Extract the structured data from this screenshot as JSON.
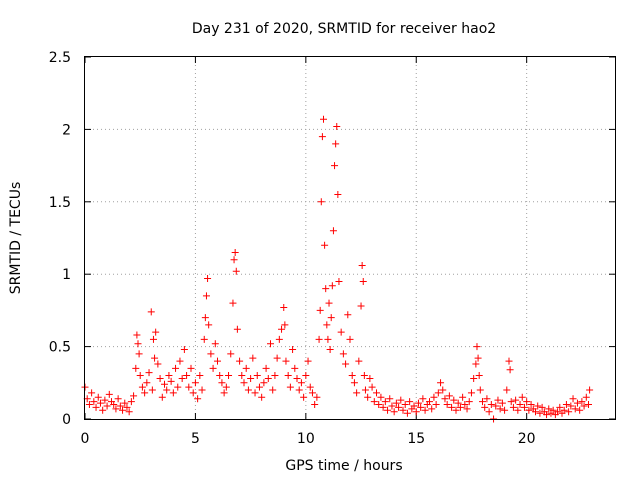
{
  "chart_data": {
    "type": "scatter",
    "title": "Day 231 of 2020, SRMTID for receiver hao2",
    "xlabel": "GPS time / hours",
    "ylabel": "SRMTID / TECUs",
    "xlim": [
      0,
      24
    ],
    "ylim": [
      0,
      2.5
    ],
    "xticks": [
      0,
      5,
      10,
      15,
      20
    ],
    "xtick_labels": [
      "0",
      "5",
      "10",
      "15",
      "20"
    ],
    "yticks": [
      0,
      0.5,
      1,
      1.5,
      2,
      2.5
    ],
    "ytick_labels": [
      "0",
      "0.5",
      "1",
      "1.5",
      "2",
      "2.5"
    ],
    "grid": true,
    "marker": "+",
    "series": [
      {
        "name": "hao2",
        "color": "#ff0000",
        "points": [
          [
            0.0,
            0.22
          ],
          [
            0.1,
            0.14
          ],
          [
            0.2,
            0.1
          ],
          [
            0.3,
            0.18
          ],
          [
            0.4,
            0.12
          ],
          [
            0.5,
            0.08
          ],
          [
            0.6,
            0.15
          ],
          [
            0.7,
            0.11
          ],
          [
            0.8,
            0.06
          ],
          [
            0.9,
            0.13
          ],
          [
            1.0,
            0.09
          ],
          [
            1.1,
            0.17
          ],
          [
            1.2,
            0.12
          ],
          [
            1.3,
            0.1
          ],
          [
            1.4,
            0.07
          ],
          [
            1.5,
            0.14
          ],
          [
            1.6,
            0.09
          ],
          [
            1.7,
            0.06
          ],
          [
            1.8,
            0.11
          ],
          [
            1.9,
            0.08
          ],
          [
            2.0,
            0.05
          ],
          [
            2.1,
            0.12
          ],
          [
            2.2,
            0.16
          ],
          [
            2.3,
            0.35
          ],
          [
            2.35,
            0.58
          ],
          [
            2.4,
            0.52
          ],
          [
            2.45,
            0.45
          ],
          [
            2.5,
            0.3
          ],
          [
            2.6,
            0.22
          ],
          [
            2.7,
            0.18
          ],
          [
            2.8,
            0.25
          ],
          [
            2.9,
            0.32
          ],
          [
            3.0,
            0.74
          ],
          [
            3.05,
            0.2
          ],
          [
            3.1,
            0.55
          ],
          [
            3.15,
            0.42
          ],
          [
            3.2,
            0.6
          ],
          [
            3.3,
            0.38
          ],
          [
            3.4,
            0.28
          ],
          [
            3.5,
            0.15
          ],
          [
            3.6,
            0.24
          ],
          [
            3.7,
            0.2
          ],
          [
            3.8,
            0.3
          ],
          [
            3.9,
            0.26
          ],
          [
            4.0,
            0.18
          ],
          [
            4.1,
            0.35
          ],
          [
            4.2,
            0.22
          ],
          [
            4.3,
            0.4
          ],
          [
            4.4,
            0.28
          ],
          [
            4.5,
            0.48
          ],
          [
            4.6,
            0.3
          ],
          [
            4.7,
            0.22
          ],
          [
            4.8,
            0.35
          ],
          [
            4.9,
            0.18
          ],
          [
            5.0,
            0.25
          ],
          [
            5.1,
            0.14
          ],
          [
            5.2,
            0.3
          ],
          [
            5.3,
            0.2
          ],
          [
            5.4,
            0.55
          ],
          [
            5.45,
            0.7
          ],
          [
            5.5,
            0.85
          ],
          [
            5.55,
            0.97
          ],
          [
            5.6,
            0.65
          ],
          [
            5.7,
            0.45
          ],
          [
            5.8,
            0.35
          ],
          [
            5.9,
            0.52
          ],
          [
            6.0,
            0.4
          ],
          [
            6.1,
            0.3
          ],
          [
            6.2,
            0.25
          ],
          [
            6.3,
            0.18
          ],
          [
            6.4,
            0.22
          ],
          [
            6.5,
            0.3
          ],
          [
            6.6,
            0.45
          ],
          [
            6.7,
            0.8
          ],
          [
            6.75,
            1.1
          ],
          [
            6.8,
            1.15
          ],
          [
            6.85,
            1.02
          ],
          [
            6.9,
            0.62
          ],
          [
            7.0,
            0.4
          ],
          [
            7.1,
            0.3
          ],
          [
            7.2,
            0.25
          ],
          [
            7.3,
            0.35
          ],
          [
            7.4,
            0.2
          ],
          [
            7.5,
            0.28
          ],
          [
            7.6,
            0.42
          ],
          [
            7.7,
            0.18
          ],
          [
            7.8,
            0.3
          ],
          [
            7.9,
            0.22
          ],
          [
            8.0,
            0.15
          ],
          [
            8.1,
            0.25
          ],
          [
            8.2,
            0.35
          ],
          [
            8.3,
            0.28
          ],
          [
            8.4,
            0.52
          ],
          [
            8.5,
            0.2
          ],
          [
            8.6,
            0.3
          ],
          [
            8.7,
            0.42
          ],
          [
            8.8,
            0.55
          ],
          [
            8.9,
            0.62
          ],
          [
            9.0,
            0.77
          ],
          [
            9.05,
            0.65
          ],
          [
            9.1,
            0.4
          ],
          [
            9.2,
            0.3
          ],
          [
            9.3,
            0.22
          ],
          [
            9.4,
            0.48
          ],
          [
            9.5,
            0.35
          ],
          [
            9.6,
            0.28
          ],
          [
            9.7,
            0.2
          ],
          [
            9.8,
            0.25
          ],
          [
            9.9,
            0.15
          ],
          [
            10.0,
            0.3
          ],
          [
            10.1,
            0.4
          ],
          [
            10.2,
            0.22
          ],
          [
            10.3,
            0.18
          ],
          [
            10.4,
            0.1
          ],
          [
            10.5,
            0.15
          ],
          [
            10.6,
            0.55
          ],
          [
            10.65,
            0.75
          ],
          [
            10.7,
            1.5
          ],
          [
            10.75,
            1.95
          ],
          [
            10.8,
            2.07
          ],
          [
            10.85,
            1.2
          ],
          [
            10.9,
            0.9
          ],
          [
            10.95,
            0.65
          ],
          [
            11.0,
            0.55
          ],
          [
            11.05,
            0.8
          ],
          [
            11.1,
            0.48
          ],
          [
            11.15,
            0.7
          ],
          [
            11.2,
            0.92
          ],
          [
            11.25,
            1.3
          ],
          [
            11.3,
            1.75
          ],
          [
            11.35,
            1.9
          ],
          [
            11.4,
            2.02
          ],
          [
            11.45,
            1.55
          ],
          [
            11.5,
            0.95
          ],
          [
            11.6,
            0.6
          ],
          [
            11.7,
            0.45
          ],
          [
            11.8,
            0.38
          ],
          [
            11.9,
            0.72
          ],
          [
            12.0,
            0.55
          ],
          [
            12.1,
            0.3
          ],
          [
            12.2,
            0.25
          ],
          [
            12.3,
            0.18
          ],
          [
            12.4,
            0.4
          ],
          [
            12.5,
            0.78
          ],
          [
            12.55,
            1.06
          ],
          [
            12.6,
            0.95
          ],
          [
            12.65,
            0.3
          ],
          [
            12.7,
            0.2
          ],
          [
            12.8,
            0.15
          ],
          [
            12.9,
            0.28
          ],
          [
            13.0,
            0.22
          ],
          [
            13.1,
            0.12
          ],
          [
            13.2,
            0.18
          ],
          [
            13.3,
            0.1
          ],
          [
            13.4,
            0.15
          ],
          [
            13.5,
            0.08
          ],
          [
            13.6,
            0.12
          ],
          [
            13.7,
            0.06
          ],
          [
            13.8,
            0.14
          ],
          [
            13.9,
            0.09
          ],
          [
            14.0,
            0.05
          ],
          [
            14.1,
            0.11
          ],
          [
            14.2,
            0.08
          ],
          [
            14.3,
            0.13
          ],
          [
            14.4,
            0.06
          ],
          [
            14.5,
            0.1
          ],
          [
            14.6,
            0.04
          ],
          [
            14.7,
            0.12
          ],
          [
            14.8,
            0.07
          ],
          [
            14.9,
            0.09
          ],
          [
            15.0,
            0.05
          ],
          [
            15.1,
            0.11
          ],
          [
            15.2,
            0.08
          ],
          [
            15.3,
            0.14
          ],
          [
            15.4,
            0.06
          ],
          [
            15.5,
            0.1
          ],
          [
            15.6,
            0.12
          ],
          [
            15.7,
            0.07
          ],
          [
            15.8,
            0.15
          ],
          [
            15.9,
            0.1
          ],
          [
            16.0,
            0.18
          ],
          [
            16.1,
            0.25
          ],
          [
            16.2,
            0.2
          ],
          [
            16.3,
            0.14
          ],
          [
            16.4,
            0.1
          ],
          [
            16.5,
            0.16
          ],
          [
            16.6,
            0.08
          ],
          [
            16.7,
            0.13
          ],
          [
            16.8,
            0.06
          ],
          [
            16.9,
            0.11
          ],
          [
            17.0,
            0.08
          ],
          [
            17.1,
            0.15
          ],
          [
            17.2,
            0.1
          ],
          [
            17.3,
            0.07
          ],
          [
            17.4,
            0.12
          ],
          [
            17.5,
            0.18
          ],
          [
            17.6,
            0.28
          ],
          [
            17.7,
            0.38
          ],
          [
            17.75,
            0.5
          ],
          [
            17.8,
            0.42
          ],
          [
            17.85,
            0.3
          ],
          [
            17.9,
            0.2
          ],
          [
            18.0,
            0.12
          ],
          [
            18.1,
            0.08
          ],
          [
            18.2,
            0.14
          ],
          [
            18.3,
            0.05
          ],
          [
            18.4,
            0.1
          ],
          [
            18.5,
            0.0
          ],
          [
            18.6,
            0.09
          ],
          [
            18.7,
            0.13
          ],
          [
            18.8,
            0.07
          ],
          [
            18.9,
            0.11
          ],
          [
            19.0,
            0.06
          ],
          [
            19.1,
            0.2
          ],
          [
            19.2,
            0.4
          ],
          [
            19.25,
            0.34
          ],
          [
            19.3,
            0.12
          ],
          [
            19.4,
            0.08
          ],
          [
            19.5,
            0.13
          ],
          [
            19.6,
            0.06
          ],
          [
            19.7,
            0.1
          ],
          [
            19.8,
            0.15
          ],
          [
            19.9,
            0.08
          ],
          [
            20.0,
            0.12
          ],
          [
            20.1,
            0.06
          ],
          [
            20.2,
            0.1
          ],
          [
            20.3,
            0.07
          ],
          [
            20.4,
            0.05
          ],
          [
            20.5,
            0.09
          ],
          [
            20.6,
            0.04
          ],
          [
            20.7,
            0.08
          ],
          [
            20.8,
            0.05
          ],
          [
            20.9,
            0.03
          ],
          [
            21.0,
            0.07
          ],
          [
            21.1,
            0.04
          ],
          [
            21.2,
            0.06
          ],
          [
            21.3,
            0.03
          ],
          [
            21.4,
            0.05
          ],
          [
            21.5,
            0.08
          ],
          [
            21.6,
            0.04
          ],
          [
            21.7,
            0.06
          ],
          [
            21.8,
            0.1
          ],
          [
            21.9,
            0.05
          ],
          [
            22.0,
            0.09
          ],
          [
            22.1,
            0.14
          ],
          [
            22.2,
            0.07
          ],
          [
            22.3,
            0.11
          ],
          [
            22.4,
            0.06
          ],
          [
            22.5,
            0.12
          ],
          [
            22.6,
            0.09
          ],
          [
            22.7,
            0.15
          ],
          [
            22.8,
            0.1
          ],
          [
            22.85,
            0.2
          ]
        ]
      }
    ]
  }
}
